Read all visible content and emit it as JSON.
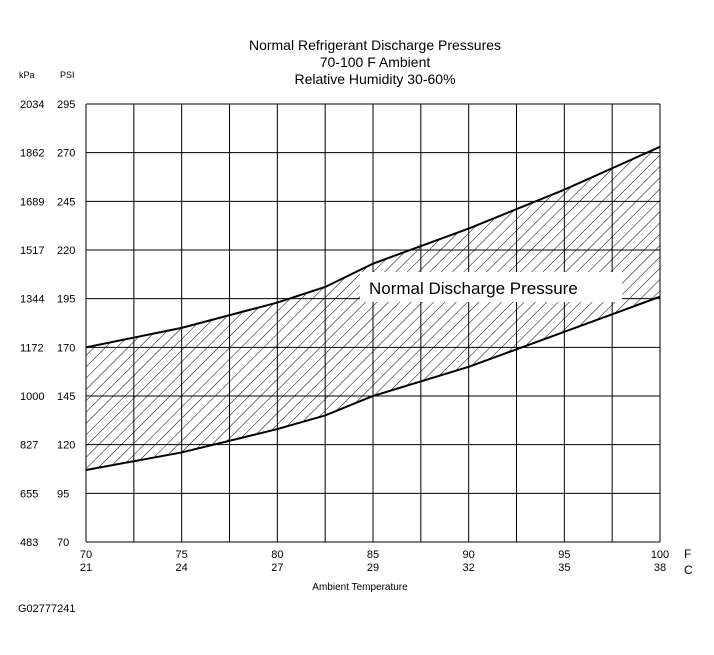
{
  "chart_data": {
    "type": "area",
    "title": "Normal  Refrigerant  Discharge  Pressures",
    "subtitle1": "70-100 F Ambient",
    "subtitle2": "Relative Humidity 30-60%",
    "xlabel": "Ambient Temperature",
    "x_unit_f": "F",
    "x_unit_c": "C",
    "y_unit_kpa": "kPa",
    "y_unit_psi": "PSI",
    "xlim": [
      70,
      100
    ],
    "ylim": [
      70,
      295
    ],
    "x_ticks_f": [
      "70",
      "75",
      "80",
      "85",
      "90",
      "95",
      "100"
    ],
    "x_ticks_c": [
      "21",
      "24",
      "27",
      "29",
      "32",
      "35",
      "38"
    ],
    "y_ticks_psi": [
      "70",
      "95",
      "120",
      "145",
      "170",
      "195",
      "220",
      "245",
      "270",
      "295"
    ],
    "y_ticks_kpa": [
      "483",
      "655",
      "827",
      "1000",
      "1172",
      "1344",
      "1517",
      "1689",
      "1862",
      "2034"
    ],
    "band_label": "Normal Discharge Pressure",
    "series": [
      {
        "role": "upper",
        "x": [
          70,
          75,
          80,
          82.5,
          85,
          90,
          95,
          100
        ],
        "y": [
          170,
          180,
          193,
          201,
          213,
          231,
          251,
          273
        ]
      },
      {
        "role": "lower",
        "x": [
          70,
          75,
          80,
          82.5,
          85,
          90,
          95,
          100
        ],
        "y": [
          107,
          116,
          128,
          135,
          145,
          160,
          178,
          196
        ]
      }
    ],
    "grid": true
  },
  "figure_id": "G02777241"
}
